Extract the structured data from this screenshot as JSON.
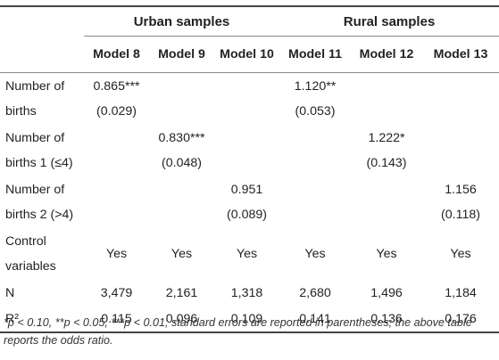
{
  "table": {
    "groups": [
      {
        "label": "Urban samples"
      },
      {
        "label": "Rural samples"
      }
    ],
    "models": [
      "Model 8",
      "Model 9",
      "Model 10",
      "Model 11",
      "Model 12",
      "Model 13"
    ],
    "rows": [
      {
        "label_line1": "Number of",
        "label_line2": "births",
        "cells": [
          {
            "coef": "0.865***",
            "se": "(0.029)"
          },
          {
            "coef": "",
            "se": ""
          },
          {
            "coef": "",
            "se": ""
          },
          {
            "coef": "1.120**",
            "se": "(0.053)"
          },
          {
            "coef": "",
            "se": ""
          },
          {
            "coef": "",
            "se": ""
          }
        ]
      },
      {
        "label_line1": "Number of",
        "label_line2": "births 1 (≤4)",
        "cells": [
          {
            "coef": "",
            "se": ""
          },
          {
            "coef": "0.830***",
            "se": "(0.048)"
          },
          {
            "coef": "",
            "se": ""
          },
          {
            "coef": "",
            "se": ""
          },
          {
            "coef": "1.222*",
            "se": "(0.143)"
          },
          {
            "coef": "",
            "se": ""
          }
        ]
      },
      {
        "label_line1": "Number of",
        "label_line2": "births 2 (>4)",
        "cells": [
          {
            "coef": "",
            "se": ""
          },
          {
            "coef": "",
            "se": ""
          },
          {
            "coef": "0.951",
            "se": "(0.089)"
          },
          {
            "coef": "",
            "se": ""
          },
          {
            "coef": "",
            "se": ""
          },
          {
            "coef": "1.156",
            "se": "(0.118)"
          }
        ]
      },
      {
        "label_line1": "Control",
        "label_line2": "variables",
        "cells": [
          {
            "coef": "Yes",
            "se": ""
          },
          {
            "coef": "Yes",
            "se": ""
          },
          {
            "coef": "Yes",
            "se": ""
          },
          {
            "coef": "Yes",
            "se": ""
          },
          {
            "coef": "Yes",
            "se": ""
          },
          {
            "coef": "Yes",
            "se": ""
          }
        ]
      }
    ],
    "n_row": {
      "label": "N",
      "values": [
        "3,479",
        "2,161",
        "1,318",
        "2,680",
        "1,496",
        "1,184"
      ]
    },
    "r2_row": {
      "label": "R²",
      "values": [
        "0.115",
        "0.096",
        "0.109",
        "0.141",
        "0.136",
        "0.176"
      ]
    }
  },
  "footnote": "*p < 0.10, **p < 0.05, ***p < 0.01; standard errors are reported in parentheses; the above table reports the odds ratio."
}
